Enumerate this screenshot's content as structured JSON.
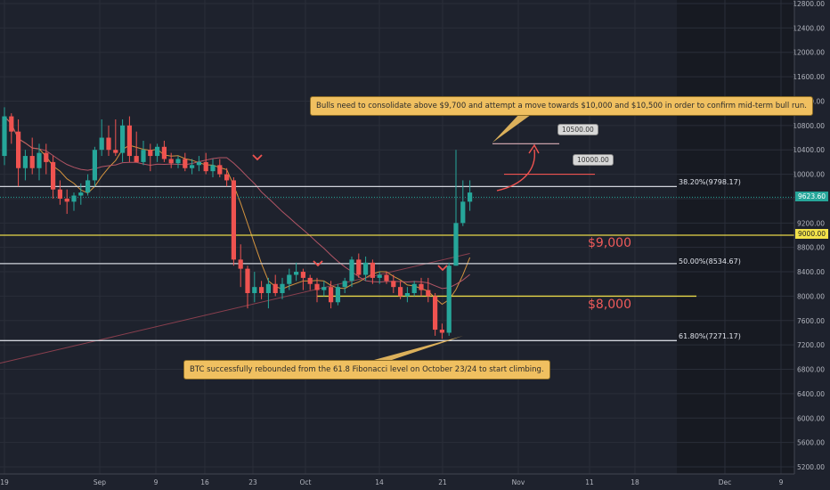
{
  "chart_data": {
    "type": "candlestick",
    "title": "",
    "xlabel": "",
    "ylabel": "",
    "ylim": [
      5200,
      12800
    ],
    "y_ticks": [
      5200,
      5600,
      6000,
      6400,
      6800,
      7200,
      7600,
      8000,
      8400,
      8800,
      9200,
      9600,
      10000,
      10400,
      10800,
      11200,
      11600,
      12000,
      12400,
      12800
    ],
    "x_ticks": [
      "19",
      "Sep",
      "9",
      "16",
      "23",
      "Oct",
      "14",
      "21",
      "Nov",
      "11",
      "18",
      "Dec",
      "9"
    ],
    "candles": [
      {
        "o": 10300,
        "h": 11100,
        "l": 10150,
        "c": 10950
      },
      {
        "o": 10950,
        "h": 11000,
        "l": 10500,
        "c": 10700
      },
      {
        "o": 10700,
        "h": 10900,
        "l": 9800,
        "c": 10100
      },
      {
        "o": 10100,
        "h": 10400,
        "l": 9900,
        "c": 10300
      },
      {
        "o": 10300,
        "h": 10600,
        "l": 10000,
        "c": 10100
      },
      {
        "o": 10100,
        "h": 10500,
        "l": 9900,
        "c": 10350
      },
      {
        "o": 10350,
        "h": 10500,
        "l": 10000,
        "c": 10200
      },
      {
        "o": 10200,
        "h": 10300,
        "l": 9600,
        "c": 9750
      },
      {
        "o": 9750,
        "h": 9900,
        "l": 9500,
        "c": 9600
      },
      {
        "o": 9600,
        "h": 9750,
        "l": 9350,
        "c": 9550
      },
      {
        "o": 9550,
        "h": 9700,
        "l": 9400,
        "c": 9650
      },
      {
        "o": 9650,
        "h": 9850,
        "l": 9500,
        "c": 9700
      },
      {
        "o": 9700,
        "h": 10000,
        "l": 9650,
        "c": 9900
      },
      {
        "o": 9900,
        "h": 10450,
        "l": 9800,
        "c": 10400
      },
      {
        "o": 10400,
        "h": 10900,
        "l": 10300,
        "c": 10600
      },
      {
        "o": 10600,
        "h": 10800,
        "l": 10300,
        "c": 10400
      },
      {
        "o": 10400,
        "h": 10900,
        "l": 10300,
        "c": 10350
      },
      {
        "o": 10350,
        "h": 10900,
        "l": 10200,
        "c": 10800
      },
      {
        "o": 10800,
        "h": 10950,
        "l": 10200,
        "c": 10300
      },
      {
        "o": 10300,
        "h": 10700,
        "l": 10200,
        "c": 10200
      },
      {
        "o": 10200,
        "h": 10550,
        "l": 10150,
        "c": 10400
      },
      {
        "o": 10400,
        "h": 10500,
        "l": 10050,
        "c": 10300
      },
      {
        "o": 10300,
        "h": 10500,
        "l": 10200,
        "c": 10450
      },
      {
        "o": 10450,
        "h": 10550,
        "l": 10200,
        "c": 10250
      },
      {
        "o": 10250,
        "h": 10350,
        "l": 10100,
        "c": 10180
      },
      {
        "o": 10180,
        "h": 10300,
        "l": 10100,
        "c": 10250
      },
      {
        "o": 10250,
        "h": 10350,
        "l": 10050,
        "c": 10100
      },
      {
        "o": 10100,
        "h": 10250,
        "l": 10000,
        "c": 10150
      },
      {
        "o": 10150,
        "h": 10300,
        "l": 10050,
        "c": 10200
      },
      {
        "o": 10200,
        "h": 10350,
        "l": 10000,
        "c": 10050
      },
      {
        "o": 10050,
        "h": 10250,
        "l": 9950,
        "c": 10150
      },
      {
        "o": 10150,
        "h": 10250,
        "l": 9950,
        "c": 10000
      },
      {
        "o": 10000,
        "h": 10100,
        "l": 9800,
        "c": 9900
      },
      {
        "o": 9900,
        "h": 9950,
        "l": 8500,
        "c": 8600
      },
      {
        "o": 8600,
        "h": 8850,
        "l": 8150,
        "c": 8450
      },
      {
        "o": 8450,
        "h": 8500,
        "l": 7800,
        "c": 8050
      },
      {
        "o": 8050,
        "h": 8400,
        "l": 7900,
        "c": 8150
      },
      {
        "o": 8150,
        "h": 8250,
        "l": 7950,
        "c": 8050
      },
      {
        "o": 8050,
        "h": 8300,
        "l": 7800,
        "c": 8200
      },
      {
        "o": 8200,
        "h": 8350,
        "l": 8000,
        "c": 8050
      },
      {
        "o": 8050,
        "h": 8300,
        "l": 7950,
        "c": 8200
      },
      {
        "o": 8200,
        "h": 8450,
        "l": 8100,
        "c": 8350
      },
      {
        "o": 8350,
        "h": 8550,
        "l": 8250,
        "c": 8400
      },
      {
        "o": 8400,
        "h": 8450,
        "l": 8100,
        "c": 8300
      },
      {
        "o": 8300,
        "h": 8350,
        "l": 8100,
        "c": 8200
      },
      {
        "o": 8200,
        "h": 8300,
        "l": 7900,
        "c": 8100
      },
      {
        "o": 8100,
        "h": 8250,
        "l": 8000,
        "c": 8150
      },
      {
        "o": 8150,
        "h": 8250,
        "l": 7800,
        "c": 7900
      },
      {
        "o": 7900,
        "h": 8200,
        "l": 7850,
        "c": 8150
      },
      {
        "o": 8150,
        "h": 8300,
        "l": 8050,
        "c": 8250
      },
      {
        "o": 8250,
        "h": 8650,
        "l": 8150,
        "c": 8600
      },
      {
        "o": 8600,
        "h": 8700,
        "l": 8300,
        "c": 8350
      },
      {
        "o": 8350,
        "h": 8650,
        "l": 8250,
        "c": 8550
      },
      {
        "o": 8550,
        "h": 8600,
        "l": 8200,
        "c": 8300
      },
      {
        "o": 8300,
        "h": 8400,
        "l": 8200,
        "c": 8350
      },
      {
        "o": 8350,
        "h": 8400,
        "l": 8200,
        "c": 8250
      },
      {
        "o": 8250,
        "h": 8350,
        "l": 8050,
        "c": 8150
      },
      {
        "o": 8150,
        "h": 8250,
        "l": 7950,
        "c": 8000
      },
      {
        "o": 8000,
        "h": 8150,
        "l": 7900,
        "c": 8050
      },
      {
        "o": 8050,
        "h": 8250,
        "l": 8000,
        "c": 8200
      },
      {
        "o": 8200,
        "h": 8300,
        "l": 8000,
        "c": 8100
      },
      {
        "o": 8100,
        "h": 8300,
        "l": 7900,
        "c": 8000
      },
      {
        "o": 8000,
        "h": 8050,
        "l": 7350,
        "c": 7450
      },
      {
        "o": 7450,
        "h": 7550,
        "l": 7300,
        "c": 7400
      },
      {
        "o": 7400,
        "h": 8550,
        "l": 7350,
        "c": 8500
      },
      {
        "o": 8500,
        "h": 10400,
        "l": 8500,
        "c": 9200
      },
      {
        "o": 9200,
        "h": 9900,
        "l": 9150,
        "c": 9550
      },
      {
        "o": 9550,
        "h": 9900,
        "l": 9400,
        "c": 9700
      }
    ],
    "levels": [
      {
        "label": "38.20%(9798.17)",
        "value": 9798.17,
        "color": "#d1d4dc"
      },
      {
        "label": "50.00%(8534.67)",
        "value": 8534.67,
        "color": "#d1d4dc"
      },
      {
        "label": "61.80%(7271.17)",
        "value": 7271.17,
        "color": "#d1d4dc"
      },
      {
        "label": "$9,000",
        "value": 9000,
        "color": "#e8d84a"
      },
      {
        "label": "$8,000",
        "value": 8000,
        "color": "#e8d84a"
      }
    ],
    "targets": [
      {
        "label": "10500.00",
        "value": 10500
      },
      {
        "label": "10000.00",
        "value": 10000
      }
    ],
    "current_price": "9623.60",
    "price_badge_9000": "9000.00",
    "annotations": [
      "Bulls need to consolidate above $9,700 and attempt a move towards $10,000 and $10,500 in order to confirm mid-term bull run.",
      "BTC successfully rebounded from the 61.8 Fibonacci level on October 23/24 to start climbing."
    ],
    "grid": true,
    "legend": "none",
    "colors": {
      "up": "#26a69a",
      "down": "#ef5350",
      "background": "#1e222d",
      "future": "#171a22"
    }
  }
}
